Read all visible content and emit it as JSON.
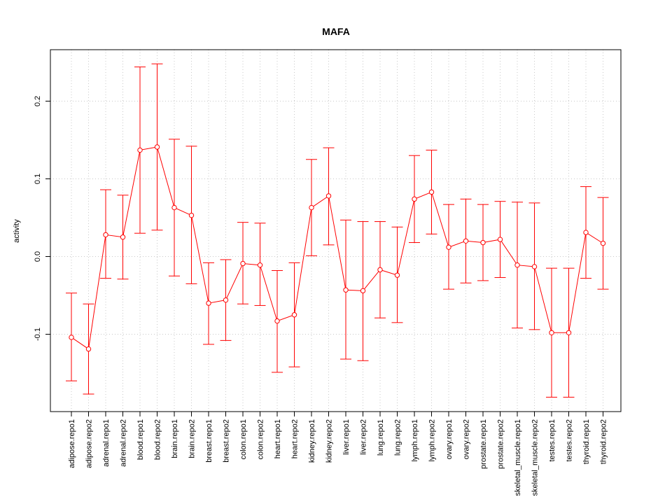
{
  "chart_data": {
    "type": "line",
    "title": "MAFA",
    "xlabel": "",
    "ylabel": "activity",
    "ylim": [
      -0.2,
      0.26
    ],
    "yticks": [
      -0.1,
      0.0,
      0.1,
      0.2
    ],
    "ytick_labels": [
      "-0.1",
      "0.0",
      "0.1",
      "0.2"
    ],
    "grid": true,
    "colors": {
      "series": "#ff0000",
      "grid": "#c8c8c8",
      "axis": "#000000"
    },
    "categories": [
      "adipose.repo1",
      "adipose.repo2",
      "adrenal.repo1",
      "adrenal.repo2",
      "blood.repo1",
      "blood.repo2",
      "brain.repo1",
      "brain.repo2",
      "breast.repo1",
      "breast.repo2",
      "colon.repo1",
      "colon.repo2",
      "heart.repo1",
      "heart.repo2",
      "kidney.repo1",
      "kidney.repo2",
      "liver.repo1",
      "liver.repo2",
      "lung.repo1",
      "lung.repo2",
      "lymph.repo1",
      "lymph.repo2",
      "ovary.repo1",
      "ovary.repo2",
      "prostate.repo1",
      "prostate.repo2",
      "skeletal_muscle.repo1",
      "skeletal_muscle.repo2",
      "testes.repo1",
      "testes.repo2",
      "thyroid.repo1",
      "thyroid.repo2"
    ],
    "series": [
      {
        "values": [
          -0.104,
          -0.119,
          0.028,
          0.025,
          0.137,
          0.141,
          0.063,
          0.053,
          -0.06,
          -0.056,
          -0.009,
          -0.011,
          -0.083,
          -0.075,
          0.063,
          0.078,
          -0.043,
          -0.044,
          -0.017,
          -0.024,
          0.074,
          0.083,
          0.012,
          0.02,
          0.018,
          0.022,
          -0.011,
          -0.013,
          -0.098,
          -0.098,
          0.031,
          0.017
        ],
        "upper": [
          -0.047,
          -0.061,
          0.086,
          0.079,
          0.244,
          0.248,
          0.151,
          0.142,
          -0.008,
          -0.004,
          0.044,
          0.043,
          -0.018,
          -0.008,
          0.125,
          0.14,
          0.047,
          0.045,
          0.045,
          0.038,
          0.13,
          0.137,
          0.067,
          0.074,
          0.067,
          0.071,
          0.07,
          0.069,
          -0.015,
          -0.015,
          0.09,
          0.076
        ],
        "lower": [
          -0.16,
          -0.177,
          -0.028,
          -0.029,
          0.03,
          0.034,
          -0.025,
          -0.035,
          -0.113,
          -0.108,
          -0.061,
          -0.063,
          -0.149,
          -0.142,
          0.001,
          0.015,
          -0.132,
          -0.134,
          -0.079,
          -0.085,
          0.018,
          0.029,
          -0.042,
          -0.034,
          -0.031,
          -0.027,
          -0.092,
          -0.094,
          -0.181,
          -0.181,
          -0.028,
          -0.042
        ]
      }
    ]
  }
}
